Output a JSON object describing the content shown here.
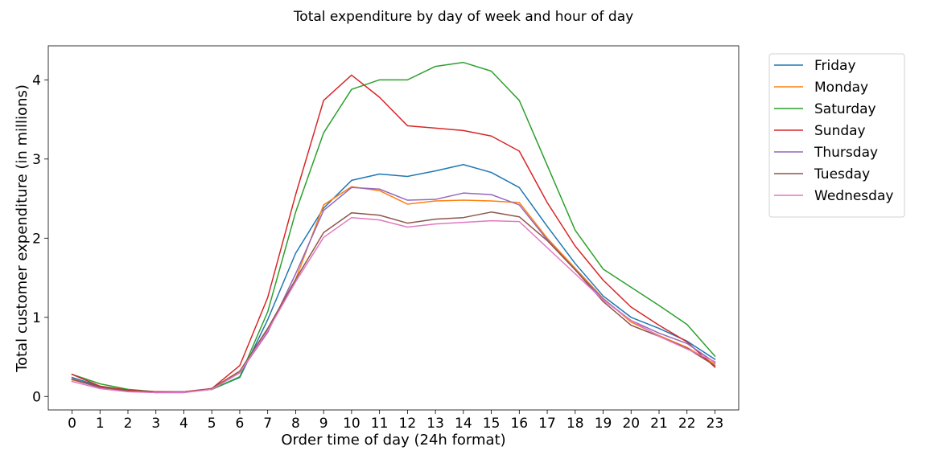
{
  "chart_data": {
    "type": "line",
    "title": "Total expenditure by day of week and hour of day",
    "xlabel": "Order time of day (24h format)",
    "ylabel": "Total customer expenditure (in millions)",
    "x": [
      0,
      1,
      2,
      3,
      4,
      5,
      6,
      7,
      8,
      9,
      10,
      11,
      12,
      13,
      14,
      15,
      16,
      17,
      18,
      19,
      20,
      21,
      22,
      23
    ],
    "xticks": [
      "0",
      "1",
      "2",
      "3",
      "4",
      "5",
      "6",
      "7",
      "8",
      "9",
      "10",
      "11",
      "12",
      "13",
      "14",
      "15",
      "16",
      "17",
      "18",
      "19",
      "20",
      "21",
      "22",
      "23"
    ],
    "yticks": [
      0,
      1,
      2,
      3,
      4
    ],
    "ytick_labels": [
      "0",
      "1",
      "2",
      "3",
      "4"
    ],
    "xlim": [
      -0.85,
      23.85
    ],
    "ylim": [
      -0.17,
      4.43
    ],
    "grid": false,
    "legend_position": "outside-top-right",
    "series": [
      {
        "name": "Friday",
        "color": "#1f77b4",
        "values": [
          0.24,
          0.13,
          0.08,
          0.06,
          0.06,
          0.09,
          0.24,
          0.97,
          1.81,
          2.38,
          2.73,
          2.81,
          2.78,
          2.85,
          2.93,
          2.83,
          2.64,
          2.15,
          1.68,
          1.27,
          1.0,
          0.86,
          0.7,
          0.47
        ]
      },
      {
        "name": "Monday",
        "color": "#ff7f0e",
        "values": [
          0.21,
          0.12,
          0.08,
          0.05,
          0.06,
          0.1,
          0.32,
          0.85,
          1.48,
          2.42,
          2.65,
          2.6,
          2.43,
          2.47,
          2.48,
          2.47,
          2.45,
          2.0,
          1.62,
          1.24,
          0.94,
          0.77,
          0.62,
          0.41
        ]
      },
      {
        "name": "Saturday",
        "color": "#2ca02c",
        "values": [
          0.28,
          0.16,
          0.09,
          0.06,
          0.06,
          0.09,
          0.25,
          1.07,
          2.33,
          3.33,
          3.88,
          4.0,
          4.0,
          4.17,
          4.22,
          4.11,
          3.74,
          2.92,
          2.1,
          1.61,
          1.38,
          1.15,
          0.91,
          0.51
        ]
      },
      {
        "name": "Sunday",
        "color": "#d62728",
        "values": [
          0.28,
          0.13,
          0.08,
          0.06,
          0.06,
          0.1,
          0.39,
          1.25,
          2.55,
          3.74,
          4.06,
          3.78,
          3.42,
          3.39,
          3.36,
          3.29,
          3.1,
          2.45,
          1.9,
          1.47,
          1.13,
          0.9,
          0.69,
          0.37
        ]
      },
      {
        "name": "Thursday",
        "color": "#9467bd",
        "values": [
          0.22,
          0.11,
          0.07,
          0.05,
          0.06,
          0.09,
          0.3,
          0.81,
          1.55,
          2.35,
          2.64,
          2.62,
          2.48,
          2.49,
          2.57,
          2.55,
          2.42,
          1.98,
          1.6,
          1.23,
          0.96,
          0.8,
          0.67,
          0.43
        ]
      },
      {
        "name": "Tuesday",
        "color": "#8c564b",
        "values": [
          0.22,
          0.12,
          0.07,
          0.05,
          0.05,
          0.1,
          0.32,
          0.86,
          1.48,
          2.07,
          2.32,
          2.29,
          2.19,
          2.24,
          2.26,
          2.33,
          2.27,
          1.97,
          1.6,
          1.2,
          0.9,
          0.76,
          0.61,
          0.39
        ]
      },
      {
        "name": "Wednesday",
        "color": "#e377c2",
        "values": [
          0.19,
          0.1,
          0.06,
          0.05,
          0.05,
          0.09,
          0.3,
          0.83,
          1.45,
          2.01,
          2.26,
          2.23,
          2.14,
          2.18,
          2.2,
          2.22,
          2.21,
          1.88,
          1.55,
          1.22,
          0.96,
          0.76,
          0.6,
          0.44
        ]
      }
    ]
  }
}
